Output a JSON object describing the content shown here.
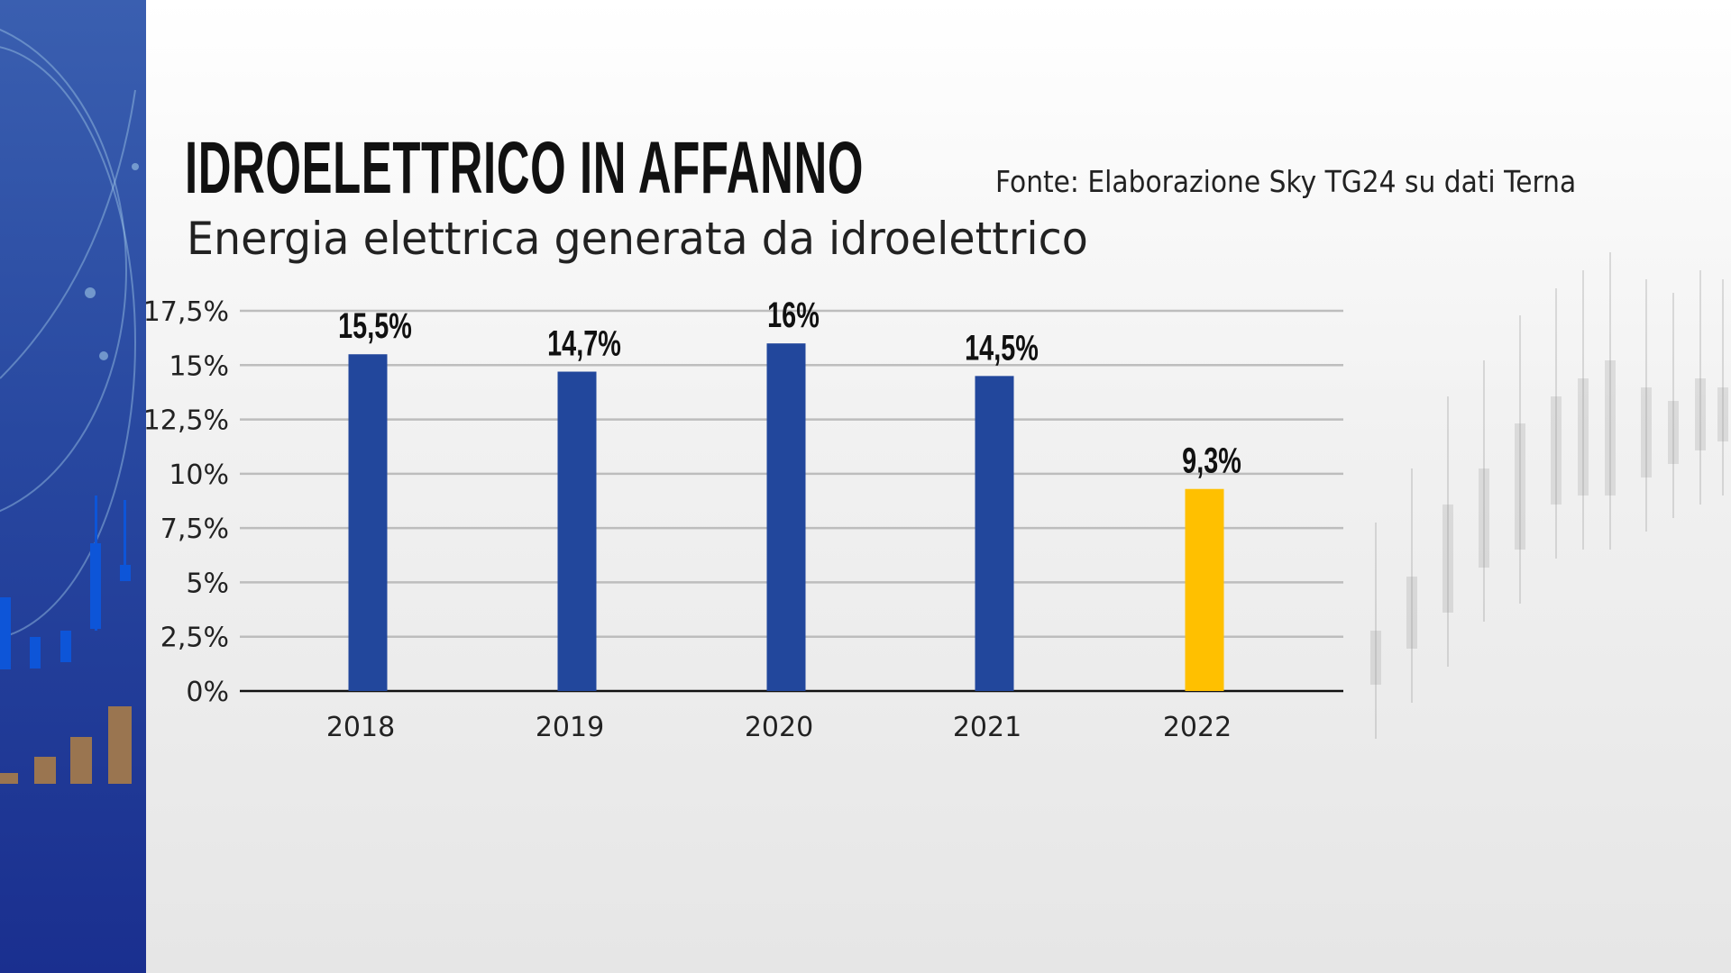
{
  "header": {
    "title": "IDROELETTRICO IN AFFANNO",
    "subtitle": "Energia elettrica generata da idroelettrico",
    "source": "Fonte: Elaborazione Sky TG24 su dati Terna"
  },
  "chart_data": {
    "type": "bar",
    "title": "IDROELETTRICO IN AFFANNO",
    "subtitle": "Energia elettrica generata da idroelettrico",
    "categories": [
      "2018",
      "2019",
      "2020",
      "2021",
      "2022"
    ],
    "values": [
      15.5,
      14.7,
      16,
      14.5,
      9.3
    ],
    "data_labels": [
      "15,5%",
      "14,7%",
      "16%",
      "14,5%",
      "9,3%"
    ],
    "colors": [
      "#22479c",
      "#22479c",
      "#22479c",
      "#22479c",
      "#ffc000"
    ],
    "ylim": [
      0,
      17.5
    ],
    "yticks": [
      0,
      2.5,
      5,
      7.5,
      10,
      12.5,
      15,
      17.5
    ],
    "ytick_labels": [
      "0%",
      "2,5%",
      "5%",
      "7,5%",
      "10%",
      "12,5%",
      "15%",
      "17,5%"
    ],
    "grid": true,
    "xlabel": "",
    "ylabel": ""
  },
  "colors": {
    "sidebar": "#2848a0",
    "bar": "#22479c",
    "highlight": "#ffc000"
  }
}
